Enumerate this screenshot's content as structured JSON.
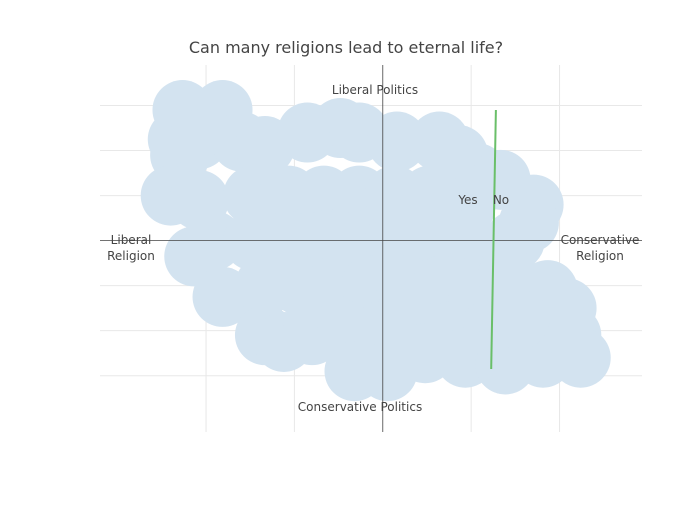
{
  "chart_data": {
    "type": "scatter",
    "title": "Can many religions lead to eternal life?",
    "xlim": [
      -1.2,
      1.1
    ],
    "ylim": [
      -0.85,
      0.78
    ],
    "grid": true,
    "x_axis_labels": {
      "left": [
        "Liberal",
        "Religion"
      ],
      "right": [
        "Conservative",
        "Religion"
      ]
    },
    "y_axis_labels": {
      "top": "Liberal Politics",
      "bottom": "Conservative Politics"
    },
    "divider_labels": {
      "left": "Yes",
      "right": "No"
    },
    "divider_line": {
      "x": [
        0.48,
        0.46
      ],
      "y": [
        0.58,
        -0.57
      ],
      "color": "#6abf69"
    },
    "bubble_color": "#d3e3f0",
    "series": [
      {
        "values": [
          [
            -0.85,
            0.58
          ],
          [
            -0.68,
            0.58
          ],
          [
            -0.87,
            0.45
          ],
          [
            -0.86,
            0.38
          ],
          [
            -0.78,
            0.45
          ],
          [
            -0.6,
            0.44
          ],
          [
            -0.5,
            0.42
          ],
          [
            -0.32,
            0.48
          ],
          [
            -0.18,
            0.5
          ],
          [
            -0.1,
            0.48
          ],
          [
            0.06,
            0.44
          ],
          [
            0.24,
            0.44
          ],
          [
            0.32,
            0.38
          ],
          [
            0.4,
            0.3
          ],
          [
            0.5,
            0.27
          ],
          [
            0.64,
            0.16
          ],
          [
            0.62,
            0.08
          ],
          [
            0.56,
            0.0
          ],
          [
            -0.9,
            0.2
          ],
          [
            -0.78,
            0.18
          ],
          [
            -0.72,
            0.0
          ],
          [
            -0.8,
            -0.07
          ],
          [
            -0.68,
            -0.25
          ],
          [
            -0.55,
            0.2
          ],
          [
            -0.4,
            0.2
          ],
          [
            -0.25,
            0.2
          ],
          [
            -0.1,
            0.2
          ],
          [
            0.05,
            0.2
          ],
          [
            0.2,
            0.2
          ],
          [
            0.35,
            0.15
          ],
          [
            -0.55,
            0.0
          ],
          [
            -0.4,
            0.0
          ],
          [
            -0.25,
            0.0
          ],
          [
            -0.1,
            0.0
          ],
          [
            0.05,
            0.0
          ],
          [
            0.2,
            0.0
          ],
          [
            0.35,
            0.0
          ],
          [
            -0.5,
            -0.2
          ],
          [
            -0.35,
            -0.2
          ],
          [
            -0.2,
            -0.2
          ],
          [
            -0.05,
            -0.2
          ],
          [
            0.1,
            -0.2
          ],
          [
            0.25,
            -0.2
          ],
          [
            0.4,
            -0.2
          ],
          [
            0.53,
            -0.16
          ],
          [
            -0.5,
            -0.42
          ],
          [
            -0.42,
            -0.45
          ],
          [
            -0.3,
            -0.42
          ],
          [
            -0.15,
            -0.4
          ],
          [
            0.0,
            -0.4
          ],
          [
            0.15,
            -0.4
          ],
          [
            0.3,
            -0.4
          ],
          [
            0.45,
            -0.4
          ],
          [
            -0.12,
            -0.58
          ],
          [
            0.02,
            -0.58
          ],
          [
            0.18,
            -0.5
          ],
          [
            0.35,
            -0.52
          ],
          [
            0.52,
            -0.55
          ],
          [
            0.68,
            -0.52
          ],
          [
            0.78,
            -0.3
          ],
          [
            0.8,
            -0.42
          ],
          [
            0.84,
            -0.52
          ],
          [
            0.7,
            -0.22
          ],
          [
            0.58,
            -0.35
          ]
        ]
      }
    ]
  }
}
